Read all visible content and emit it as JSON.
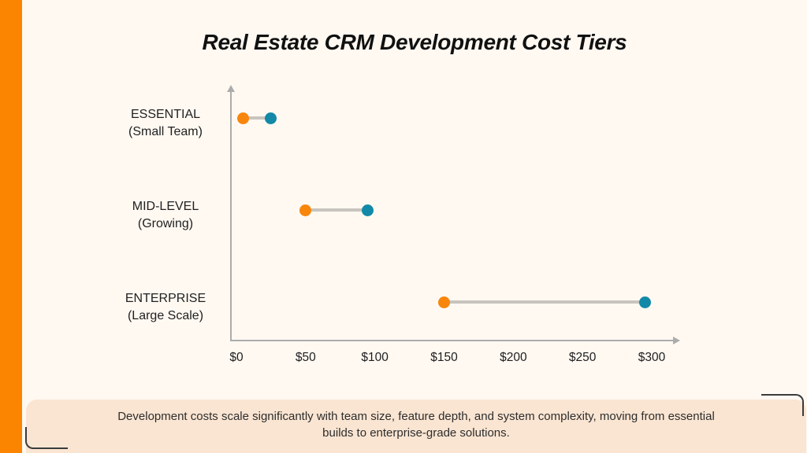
{
  "page": {
    "background_color": "#FFF9F2",
    "accent_bar_color": "#FB8500"
  },
  "title": "Real Estate CRM Development Cost Tiers",
  "chart_data": {
    "type": "scatter",
    "variant": "dumbbell-range",
    "title": "Real Estate CRM Development Cost Tiers",
    "orientation": "horizontal",
    "grid": false,
    "legend": "none",
    "xlim": [
      0,
      300
    ],
    "x_ticks": [
      {
        "value": 0,
        "label": "$0"
      },
      {
        "value": 50,
        "label": "$50"
      },
      {
        "value": 100,
        "label": "$100"
      },
      {
        "value": 150,
        "label": "$150"
      },
      {
        "value": 200,
        "label": "$200"
      },
      {
        "value": 250,
        "label": "$250"
      },
      {
        "value": 300,
        "label": "$300"
      }
    ],
    "rows": [
      {
        "label": "ESSENTIAL",
        "sublabel": "(Small Team)",
        "low": 5,
        "high": 25
      },
      {
        "label": "MID-LEVEL",
        "sublabel": "(Growing)",
        "low": 50,
        "high": 95
      },
      {
        "label": "ENTERPRISE",
        "sublabel": "(Large Scale)",
        "low": 150,
        "high": 295
      }
    ],
    "colors": {
      "low_dot": "#F8860B",
      "high_dot": "#1389A8",
      "connector": "#C8C4BE",
      "axis": "#ACACAC"
    }
  },
  "caption": {
    "text": "Development costs scale significantly with team size, feature depth, and system complexity, moving from essential builds to enterprise-grade solutions.",
    "background_color": "#FAE5D2"
  }
}
